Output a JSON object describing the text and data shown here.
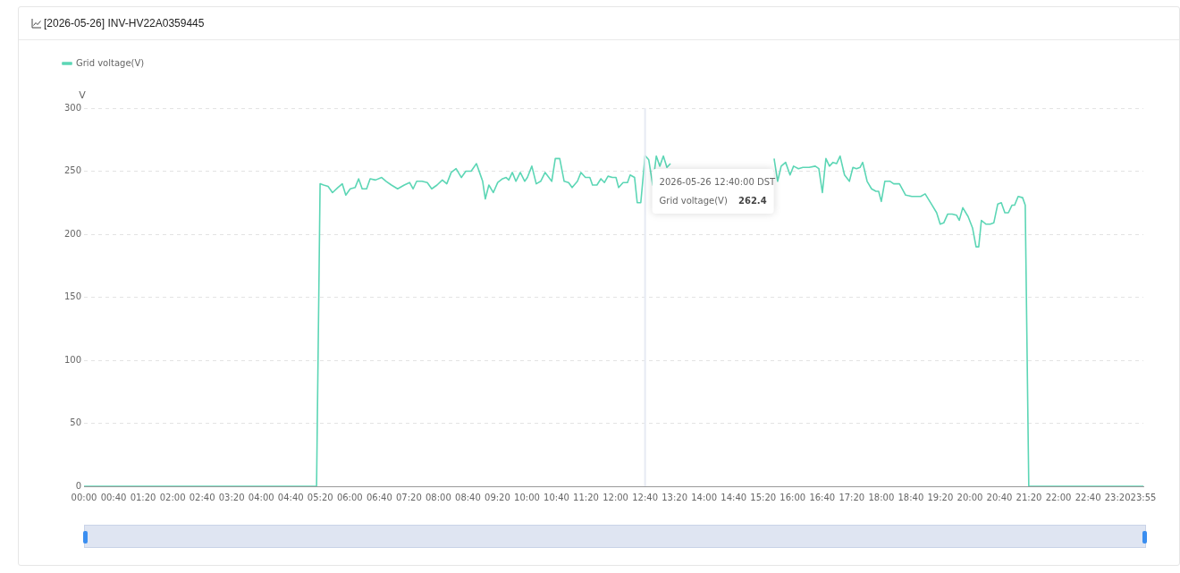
{
  "chart_data": {
    "type": "line",
    "title": "[2026-05-26] INV-HV22A0359445",
    "ylabel": "V",
    "legend": "top left",
    "grid": "y",
    "line_style": "solid",
    "marker": "none",
    "xlim": [
      0,
      23.9167
    ],
    "xticks": [
      {
        "value": 0,
        "label": "00:00"
      },
      {
        "value": 0.667,
        "label": "00:40"
      },
      {
        "value": 1.333,
        "label": "01:20"
      },
      {
        "value": 2,
        "label": "02:00"
      },
      {
        "value": 2.667,
        "label": "02:40"
      },
      {
        "value": 3.333,
        "label": "03:20"
      },
      {
        "value": 4,
        "label": "04:00"
      },
      {
        "value": 4.667,
        "label": "04:40"
      },
      {
        "value": 5.333,
        "label": "05:20"
      },
      {
        "value": 6,
        "label": "06:00"
      },
      {
        "value": 6.667,
        "label": "06:40"
      },
      {
        "value": 7.333,
        "label": "07:20"
      },
      {
        "value": 8,
        "label": "08:00"
      },
      {
        "value": 8.667,
        "label": "08:40"
      },
      {
        "value": 9.333,
        "label": "09:20"
      },
      {
        "value": 10,
        "label": "10:00"
      },
      {
        "value": 10.667,
        "label": "10:40"
      },
      {
        "value": 11.333,
        "label": "11:20"
      },
      {
        "value": 12,
        "label": "12:00"
      },
      {
        "value": 12.667,
        "label": "12:40"
      },
      {
        "value": 13.333,
        "label": "13:20"
      },
      {
        "value": 14,
        "label": "14:00"
      },
      {
        "value": 14.667,
        "label": "14:40"
      },
      {
        "value": 15.333,
        "label": "15:20"
      },
      {
        "value": 16,
        "label": "16:00"
      },
      {
        "value": 16.667,
        "label": "16:40"
      },
      {
        "value": 17.333,
        "label": "17:20"
      },
      {
        "value": 18,
        "label": "18:00"
      },
      {
        "value": 18.667,
        "label": "18:40"
      },
      {
        "value": 19.333,
        "label": "19:20"
      },
      {
        "value": 20,
        "label": "20:00"
      },
      {
        "value": 20.667,
        "label": "20:40"
      },
      {
        "value": 21.333,
        "label": "21:20"
      },
      {
        "value": 22,
        "label": "22:00"
      },
      {
        "value": 22.667,
        "label": "22:40"
      },
      {
        "value": 23.333,
        "label": "23:20"
      },
      {
        "value": 23.9167,
        "label": "23:55"
      }
    ],
    "ylim": [
      0,
      300
    ],
    "yticks": [
      0,
      50,
      100,
      150,
      200,
      250,
      300
    ],
    "ref_lines": [
      {
        "axis": "x",
        "value": 12.667,
        "color": "#e6eaf3"
      }
    ],
    "annotations": [
      {
        "text": "2026-05-26 12:40:00 DST",
        "x": 12.667,
        "y": 262.4
      },
      "262.4"
    ],
    "series": [
      {
        "name": "Grid voltage(V)",
        "color": "#5cd6b5",
        "x": [
          0,
          5.25,
          5.33,
          5.41,
          5.51,
          5.61,
          5.73,
          5.83,
          5.91,
          6.01,
          6.12,
          6.2,
          6.28,
          6.38,
          6.46,
          6.58,
          6.72,
          6.82,
          6.94,
          7.08,
          7.23,
          7.35,
          7.43,
          7.51,
          7.63,
          7.75,
          7.85,
          7.97,
          8.09,
          8.19,
          8.29,
          8.4,
          8.52,
          8.62,
          8.74,
          8.86,
          8.96,
          9,
          9.06,
          9.14,
          9.24,
          9.34,
          9.45,
          9.53,
          9.59,
          9.67,
          9.75,
          9.85,
          9.95,
          10.01,
          10.11,
          10.21,
          10.31,
          10.41,
          10.56,
          10.64,
          10.74,
          10.84,
          10.94,
          11.02,
          11.14,
          11.22,
          11.32,
          11.42,
          11.48,
          11.58,
          11.67,
          11.75,
          11.83,
          11.93,
          12.01,
          12.07,
          12.17,
          12.27,
          12.33,
          12.43,
          12.49,
          12.57,
          12.667,
          12.75,
          12.84,
          12.92,
          13,
          13.08,
          13.16,
          13.24,
          14.5,
          15.58,
          15.66,
          15.74,
          15.84,
          15.94,
          16.02,
          16.13,
          16.23,
          16.37,
          16.51,
          16.59,
          16.67,
          16.75,
          16.83,
          16.91,
          16.99,
          17.07,
          17.17,
          17.28,
          17.36,
          17.44,
          17.52,
          17.58,
          17.68,
          17.78,
          17.88,
          17.94,
          18,
          18.08,
          18.2,
          18.28,
          18.41,
          18.55,
          18.69,
          18.79,
          18.89,
          18.99,
          19.13,
          19.25,
          19.33,
          19.41,
          19.5,
          19.6,
          19.7,
          19.76,
          19.84,
          19.96,
          20.06,
          20.14,
          20.2,
          20.26,
          20.36,
          20.46,
          20.54,
          20.63,
          20.71,
          20.79,
          20.87,
          20.95,
          21.01,
          21.09,
          21.19,
          21.25,
          21.33,
          23.9167
        ],
        "values": [
          0,
          0,
          240,
          239,
          238,
          233,
          237,
          240,
          231,
          236,
          237,
          244,
          236,
          236,
          244,
          243,
          245,
          242,
          239,
          236,
          239,
          241,
          236,
          242,
          242,
          241,
          236,
          239,
          243,
          240,
          249,
          252,
          245,
          250,
          250,
          256,
          246,
          242,
          228,
          239,
          233,
          241,
          244,
          245,
          243,
          249,
          242,
          249,
          242,
          245,
          254,
          240,
          242,
          249,
          242,
          260,
          260,
          242,
          241,
          237,
          242,
          249,
          245,
          245,
          239,
          239,
          244,
          241,
          246,
          245,
          245,
          237,
          241,
          241,
          247,
          245,
          225,
          225,
          262.4,
          259,
          239,
          262,
          254,
          262,
          253,
          256,
          null,
          260,
          242,
          254,
          257,
          247,
          254,
          252,
          253,
          253,
          254,
          252,
          233,
          260,
          254,
          257,
          256,
          262,
          247,
          242,
          253,
          252,
          253,
          257,
          242,
          236,
          234,
          234,
          226,
          242,
          242,
          240,
          240,
          231,
          230,
          230,
          230,
          232,
          224,
          217,
          208,
          209,
          216,
          216,
          215,
          211,
          221,
          214,
          205,
          190,
          190,
          211,
          208,
          208,
          209,
          224,
          225,
          217,
          217,
          223,
          223,
          230,
          229,
          223,
          0,
          0
        ]
      }
    ]
  }
}
